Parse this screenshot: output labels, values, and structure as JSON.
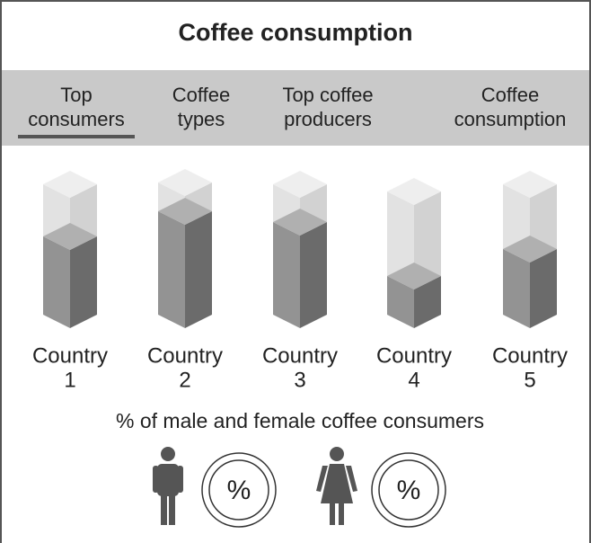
{
  "header": {
    "title": "Coffee consumption"
  },
  "tabs": [
    [
      "Top",
      "consumers"
    ],
    [
      "Coffee",
      "types"
    ],
    [
      "Top coffee",
      "producers"
    ],
    [
      "Coffee",
      "consumption"
    ]
  ],
  "countries": [
    [
      "Country",
      "1"
    ],
    [
      "Country",
      "2"
    ],
    [
      "Country",
      "3"
    ],
    [
      "Country",
      "4"
    ],
    [
      "Country",
      "5"
    ]
  ],
  "gender": {
    "caption": "% of male and female coffee consumers",
    "badges": [
      "%",
      "%"
    ]
  }
}
